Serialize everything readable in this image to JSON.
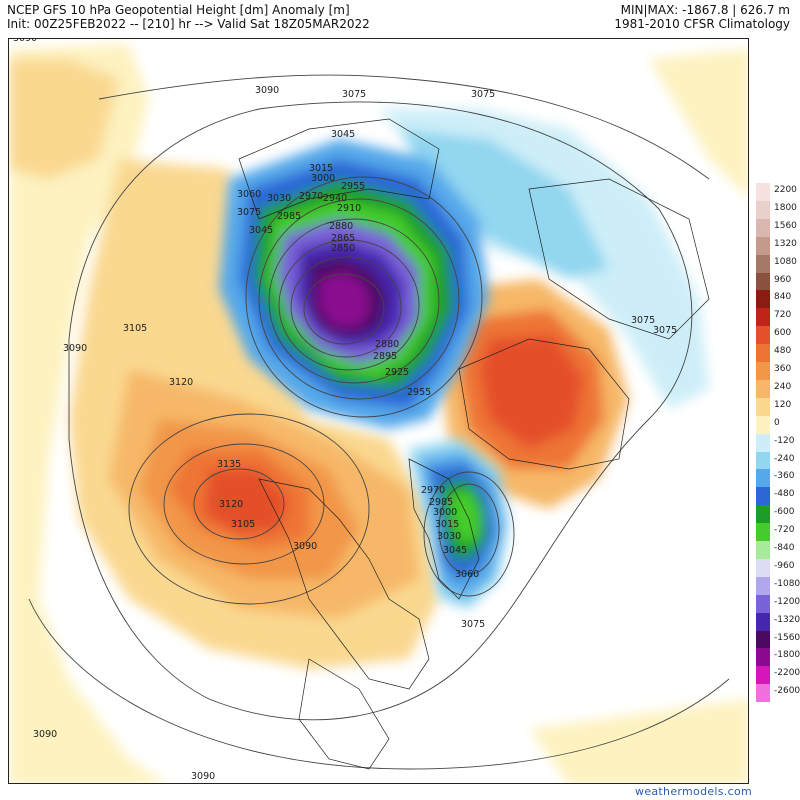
{
  "header": {
    "title_line1": "NCEP GFS 10 hPa Geopotential Height [dm] Anomaly [m]",
    "title_line2": "Init: 00Z25FEB2022 -- [210] hr --> Valid Sat 18Z05MAR2022",
    "minmax": "MIN|MAX: -1867.8 | 626.7 m",
    "climatology": "1981-2010 CFSR Climatology"
  },
  "credit": "weathermodels.com",
  "colorbar": {
    "levels": [
      {
        "label": "2200",
        "color": "#f6e0e0"
      },
      {
        "label": "1800",
        "color": "#ead0cb"
      },
      {
        "label": "1560",
        "color": "#d9b6ae"
      },
      {
        "label": "1320",
        "color": "#c49a8d"
      },
      {
        "label": "1080",
        "color": "#a67868"
      },
      {
        "label": "960",
        "color": "#8a5040"
      },
      {
        "label": "840",
        "color": "#8b1c14"
      },
      {
        "label": "720",
        "color": "#c0231a"
      },
      {
        "label": "600",
        "color": "#e4502a"
      },
      {
        "label": "480",
        "color": "#ee7436"
      },
      {
        "label": "360",
        "color": "#f29648"
      },
      {
        "label": "240",
        "color": "#f6b868"
      },
      {
        "label": "120",
        "color": "#fad890"
      },
      {
        "label": "0",
        "color": "#fdf2c0"
      },
      {
        "label": "-120",
        "color": "#cdeef8"
      },
      {
        "label": "-240",
        "color": "#92d6f0"
      },
      {
        "label": "-360",
        "color": "#55a8ea"
      },
      {
        "label": "-480",
        "color": "#2b68d6"
      },
      {
        "label": "-600",
        "color": "#1e9c2a"
      },
      {
        "label": "-720",
        "color": "#45cc2c"
      },
      {
        "label": "-840",
        "color": "#a6ea9a"
      },
      {
        "label": "-960",
        "color": "#dcdcf4"
      },
      {
        "label": "-1080",
        "color": "#b0a8ec"
      },
      {
        "label": "-1200",
        "color": "#7a62d8"
      },
      {
        "label": "-1320",
        "color": "#4628b0"
      },
      {
        "label": "-1560",
        "color": "#4a0a60"
      },
      {
        "label": "-1800",
        "color": "#8a0a90"
      },
      {
        "label": "-2200",
        "color": "#d616b8"
      },
      {
        "label": "-2600",
        "color": "#f070e0"
      }
    ]
  },
  "contour_labels": [
    "3090",
    "3090",
    "3090",
    "3075",
    "3075",
    "3045",
    "3015",
    "3000",
    "3030",
    "2985",
    "2970",
    "2955",
    "2940",
    "2910",
    "2880",
    "2865",
    "2850",
    "3060",
    "3075",
    "3045",
    "2880",
    "2895",
    "2925",
    "2955",
    "3105",
    "3090",
    "3120",
    "3135",
    "3120",
    "3105",
    "3090",
    "2970",
    "2985",
    "3000",
    "3015",
    "3030",
    "3045",
    "3060",
    "3075",
    "3075",
    "3075",
    "3090",
    "3090"
  ]
}
